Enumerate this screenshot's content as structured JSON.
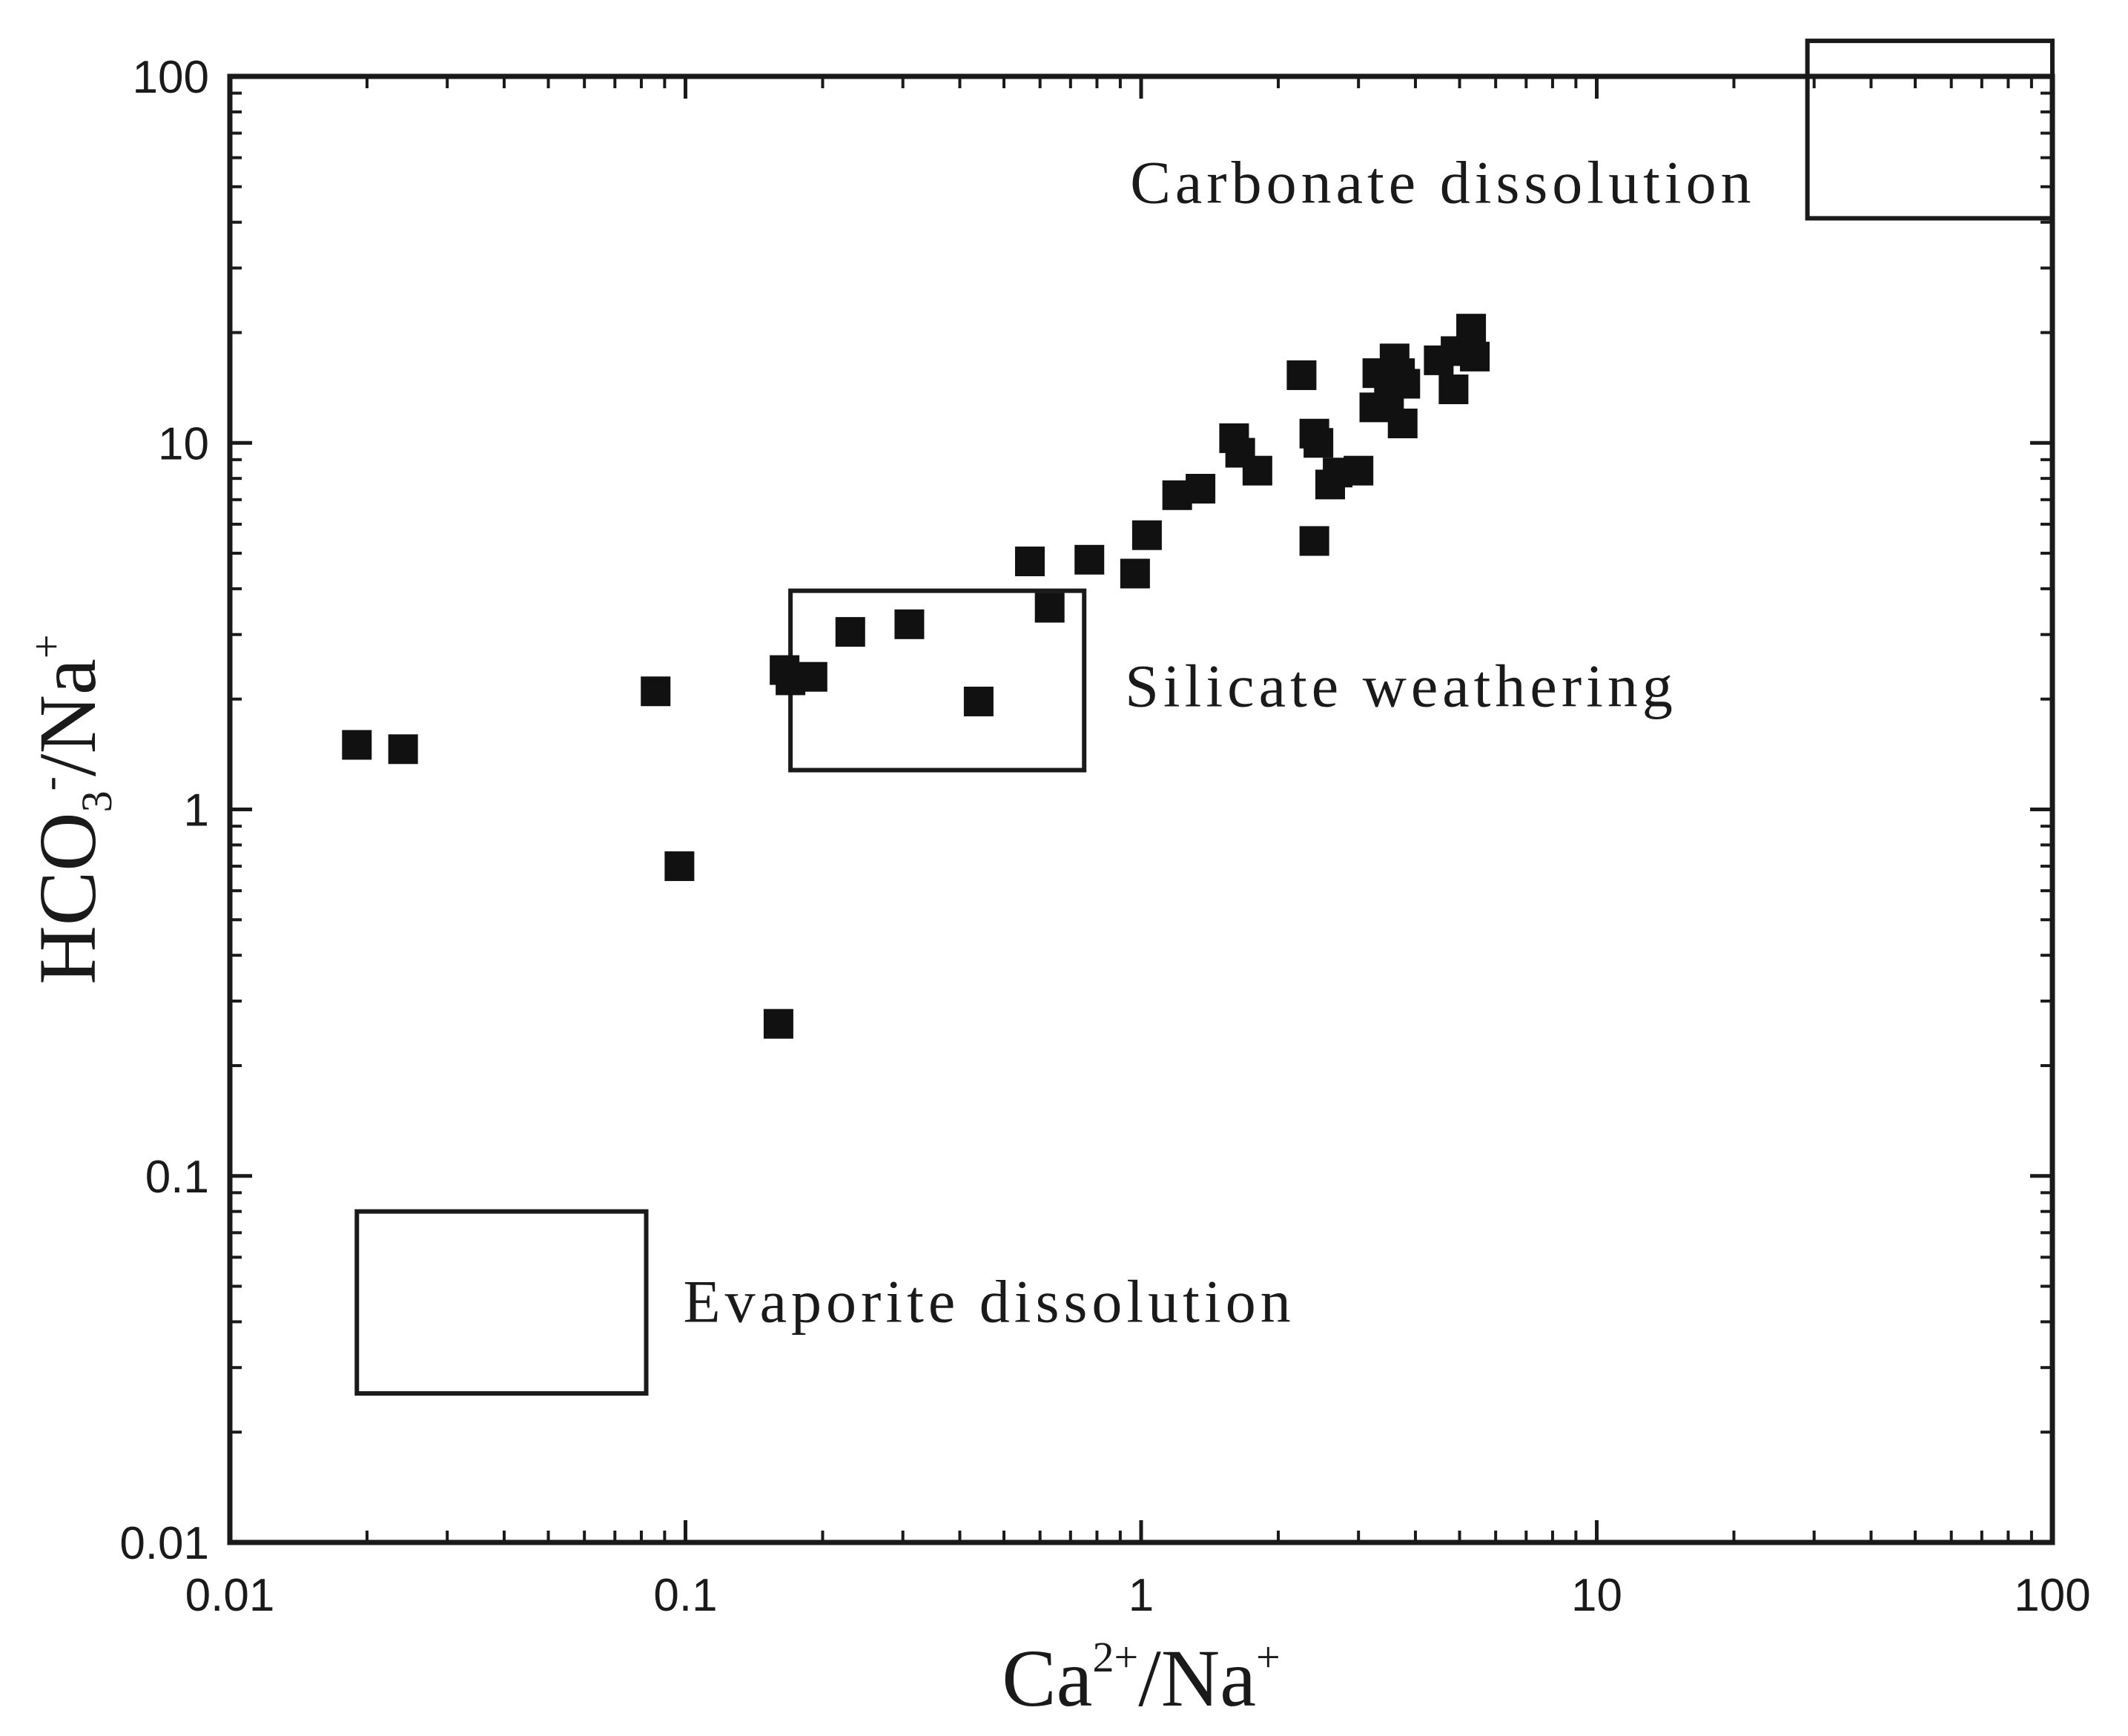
{
  "chart_data": {
    "type": "scatter",
    "title": "",
    "x_scale": "log",
    "y_scale": "log",
    "xlim": [
      0.01,
      100
    ],
    "ylim": [
      0.01,
      100
    ],
    "xlabel": {
      "base": "Ca",
      "sup1": "2+",
      "mid": "/Na",
      "sup2": "+"
    },
    "ylabel": {
      "base": "HCO",
      "sub": "3",
      "sup1": "-",
      "mid": "/Na",
      "sup2": "+"
    },
    "x_ticks": [
      {
        "value": 0.01,
        "label": "0.01"
      },
      {
        "value": 0.1,
        "label": "0.1"
      },
      {
        "value": 1,
        "label": "1"
      },
      {
        "value": 10,
        "label": "10"
      },
      {
        "value": 100,
        "label": "100"
      }
    ],
    "y_ticks": [
      {
        "value": 0.01,
        "label": "0.01"
      },
      {
        "value": 0.1,
        "label": "0.1"
      },
      {
        "value": 1,
        "label": "1"
      },
      {
        "value": 10,
        "label": "10"
      },
      {
        "value": 100,
        "label": "100"
      }
    ],
    "marker": "square",
    "marker_color": "#111111",
    "points": [
      {
        "x": 0.019,
        "y": 1.5
      },
      {
        "x": 0.024,
        "y": 1.46
      },
      {
        "x": 0.086,
        "y": 2.1
      },
      {
        "x": 0.097,
        "y": 0.7
      },
      {
        "x": 0.16,
        "y": 0.26
      },
      {
        "x": 0.165,
        "y": 2.4
      },
      {
        "x": 0.17,
        "y": 2.25
      },
      {
        "x": 0.19,
        "y": 2.3
      },
      {
        "x": 0.23,
        "y": 3.05
      },
      {
        "x": 0.31,
        "y": 3.2
      },
      {
        "x": 0.44,
        "y": 1.97
      },
      {
        "x": 0.57,
        "y": 4.75
      },
      {
        "x": 0.63,
        "y": 3.55
      },
      {
        "x": 0.77,
        "y": 4.8
      },
      {
        "x": 0.97,
        "y": 4.4
      },
      {
        "x": 1.03,
        "y": 5.6
      },
      {
        "x": 1.2,
        "y": 7.2
      },
      {
        "x": 1.35,
        "y": 7.5
      },
      {
        "x": 1.6,
        "y": 10.3
      },
      {
        "x": 1.65,
        "y": 9.4
      },
      {
        "x": 1.8,
        "y": 8.4
      },
      {
        "x": 2.25,
        "y": 15.3
      },
      {
        "x": 2.4,
        "y": 10.6
      },
      {
        "x": 2.45,
        "y": 10.0
      },
      {
        "x": 2.4,
        "y": 5.4
      },
      {
        "x": 2.6,
        "y": 7.7
      },
      {
        "x": 2.7,
        "y": 8.3
      },
      {
        "x": 3.0,
        "y": 8.4
      },
      {
        "x": 3.25,
        "y": 12.5
      },
      {
        "x": 3.3,
        "y": 15.5
      },
      {
        "x": 3.5,
        "y": 13.5
      },
      {
        "x": 3.6,
        "y": 17.0
      },
      {
        "x": 3.7,
        "y": 15.5
      },
      {
        "x": 3.75,
        "y": 11.3
      },
      {
        "x": 3.8,
        "y": 14.5
      },
      {
        "x": 4.5,
        "y": 16.8
      },
      {
        "x": 4.9,
        "y": 17.8
      },
      {
        "x": 4.85,
        "y": 14.0
      },
      {
        "x": 5.3,
        "y": 20.5
      },
      {
        "x": 5.4,
        "y": 17.2
      }
    ],
    "regions": [
      {
        "name": "carbonate",
        "label": "Carbonate dissolution",
        "x_range": [
          29,
          100
        ],
        "y_range": [
          41,
          125
        ]
      },
      {
        "name": "silicate",
        "label": "Silicate weathering",
        "x_range": [
          0.17,
          0.75
        ],
        "y_range": [
          1.28,
          3.95
        ]
      },
      {
        "name": "evaporite",
        "label": "Evaporite dissolution",
        "x_range": [
          0.019,
          0.082
        ],
        "y_range": [
          0.0255,
          0.08
        ]
      }
    ]
  }
}
